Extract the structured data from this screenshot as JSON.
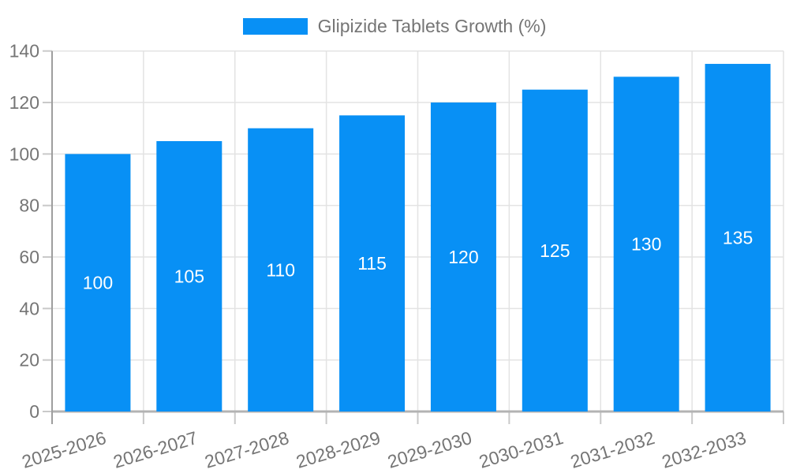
{
  "chart_data": {
    "type": "bar",
    "title": "Glipizide Tablets Growth (%)",
    "categories": [
      "2025-2026",
      "2026-2027",
      "2027-2028",
      "2028-2029",
      "2029-2030",
      "2030-2031",
      "2031-2032",
      "2032-2033"
    ],
    "series": [
      {
        "name": "Glipizide Tablets Growth (%)",
        "values": [
          100,
          105,
          110,
          115,
          120,
          125,
          130,
          135
        ]
      }
    ],
    "bar_value_labels": [
      "100",
      "105",
      "110",
      "115",
      "120",
      "125",
      "130",
      "135"
    ],
    "xlabel": "",
    "ylabel": "",
    "ylim": [
      0,
      140
    ],
    "ytick_step": 20,
    "yticks": [
      0,
      20,
      40,
      60,
      80,
      100,
      120,
      140
    ],
    "grid": "on",
    "legend_position": "top",
    "x_label_rotation_deg": -17,
    "colors": {
      "bar": "#0890f5",
      "bar_label": "#ffffff",
      "axis_text": "#757575",
      "grid_line": "#e3e3e3",
      "axis_line_x": "#b3b3b3",
      "axis_line_y": "#9e9e9e",
      "tick_line": "#c9c9c9",
      "background": "#ffffff"
    }
  }
}
